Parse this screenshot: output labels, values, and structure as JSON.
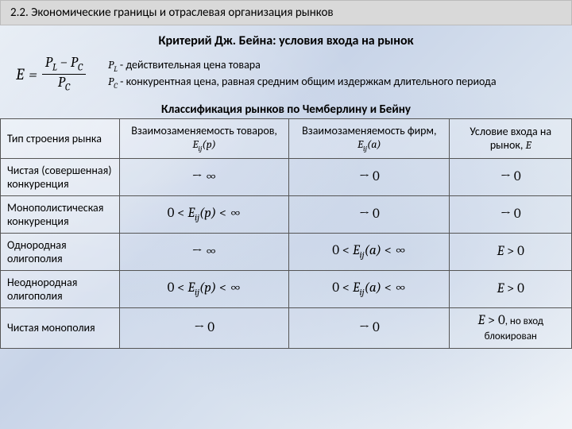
{
  "header": "2.2. Экономические границы и отраслевая организация рынков",
  "subtitle": "Критерий Дж. Бейна: условия входа на рынок",
  "formula": {
    "lhs": "E",
    "eq": "=",
    "num": "P_L − P_C",
    "den": "P_C"
  },
  "defs": {
    "line1_sym": "P_L",
    "line1_txt": " - действительная цена товара",
    "line2_sym": "P_C",
    "line2_txt": " - конкурентная цена, равная средним общим издержкам длительного периода"
  },
  "table_title": "Классификация рынков по Чемберлину и Бейну",
  "columns": {
    "c1": "Тип строения рынка",
    "c2_a": "Взаимозаменяемость товаров, ",
    "c2_b": "E_ij(p)",
    "c3_a": "Взаимозаменяемость фирм, ",
    "c3_b": "E_ij(a)",
    "c4_a": "Условие входа на рынок, ",
    "c4_b": "E"
  },
  "rows": [
    {
      "label": "Чистая (совершенная) конкуренция",
      "c2": "→  ∞",
      "c3": "→ 0",
      "c4": "→ 0"
    },
    {
      "label": "Монополистическая конкуренция",
      "c2": "0 < E_ij(p) < ∞",
      "c3": "→ 0",
      "c4": "→ 0"
    },
    {
      "label": "Однородная олигополия",
      "c2": "→  ∞",
      "c3": "0 < E_ij(a) < ∞",
      "c4": "E > 0"
    },
    {
      "label": "Неоднородная олигополия",
      "c2": "0 < E_ij(p) < ∞",
      "c3": "0 < E_ij(a) < ∞",
      "c4": "E > 0"
    },
    {
      "label": "Чистая монополия",
      "c2": "→ 0",
      "c3": "→ 0",
      "c4": "E > 0",
      "c4_note": ", но вход блокирован"
    }
  ],
  "colors": {
    "header_bg": "#d9d9d9",
    "border": "#555555",
    "text": "#000000"
  }
}
